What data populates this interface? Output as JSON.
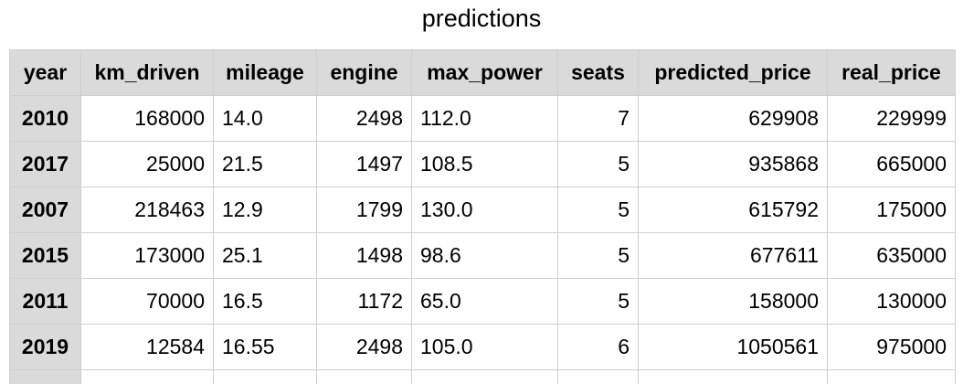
{
  "title": "predictions",
  "table": {
    "columns": [
      "year",
      "km_driven",
      "mileage",
      "engine",
      "max_power",
      "seats",
      "predicted_price",
      "real_price"
    ],
    "rows": [
      [
        "2010",
        "168000",
        "14.0",
        "2498",
        "112.0",
        "7",
        "629908",
        "229999"
      ],
      [
        "2017",
        "25000",
        "21.5",
        "1497",
        "108.5",
        "5",
        "935868",
        "665000"
      ],
      [
        "2007",
        "218463",
        "12.9",
        "1799",
        "130.0",
        "5",
        "615792",
        "175000"
      ],
      [
        "2015",
        "173000",
        "25.1",
        "1498",
        "98.6",
        "5",
        "677611",
        "635000"
      ],
      [
        "2011",
        "70000",
        "16.5",
        "1172",
        "65.0",
        "5",
        "158000",
        "130000"
      ],
      [
        "2019",
        "12584",
        "16.55",
        "2498",
        "105.0",
        "6",
        "1050561",
        "975000"
      ]
    ]
  }
}
